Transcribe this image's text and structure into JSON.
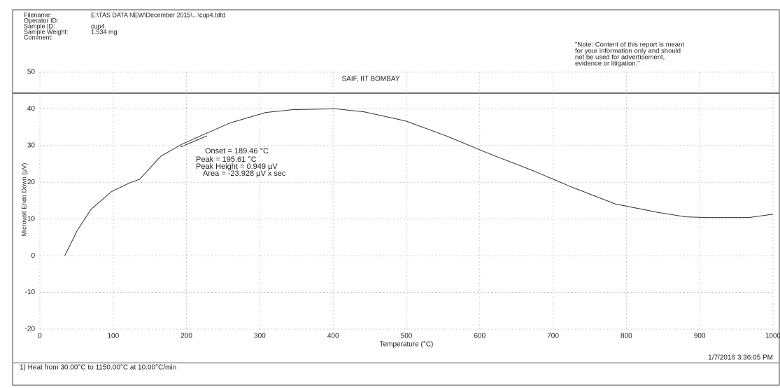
{
  "chart_data": {
    "type": "line",
    "title": "SAIF, IIT BOMBAY",
    "info": [
      {
        "label": "Filename:",
        "value": "E:\\TAS DATA NEW\\December 2015\\...\\cup4.tdtd"
      },
      {
        "label": "Operator ID:"
      },
      {
        "label": "Sample ID:",
        "value": "cup4"
      },
      {
        "label": "Sample Weight:",
        "value": "1.534 mg"
      },
      {
        "label": "Comment:"
      }
    ],
    "note": [
      "\"Note: Content of this report  is meant",
      "for your information only and should",
      "not  be  used  for  advertisement,",
      "evidence or litigation.\""
    ],
    "xlabel": "Temperature (°C)",
    "ylabel": "Microvolt Endo Down (µV)",
    "annotations": [
      "Onset = 189.46 °C",
      "Peak = 195.61 °C",
      "Peak Height = 0.949 µV",
      "Area = -23.928 µV x sec"
    ],
    "footer": "1) Heat from 30.00°C to 1150.00°C at 10.00°C/min",
    "timestamp": "1/7/2016 3:36:05 PM",
    "x": [
      34,
      51,
      70,
      98,
      122,
      136,
      165,
      194,
      222,
      260,
      308,
      346,
      404,
      442,
      499,
      556,
      614,
      671,
      728,
      785,
      843,
      881,
      909,
      938,
      967,
      1000
    ],
    "values": [
      0,
      6.9,
      12.7,
      17.5,
      19.8,
      20.8,
      27.1,
      30.4,
      32.9,
      36.2,
      39,
      39.8,
      40,
      39.2,
      36.7,
      32.5,
      27.7,
      23.3,
      18.5,
      14.1,
      11.8,
      10.6,
      10.4,
      10.4,
      10.4,
      11.3
    ],
    "color": "#333333",
    "xlim": [
      0,
      1000
    ],
    "xticks": [
      0,
      100,
      200,
      300,
      400,
      500,
      600,
      700,
      800,
      900,
      1000
    ],
    "ylim": [
      -20,
      50
    ],
    "yticks": [
      -20,
      -10,
      0,
      10,
      20,
      30,
      40,
      50
    ],
    "grid": true
  }
}
